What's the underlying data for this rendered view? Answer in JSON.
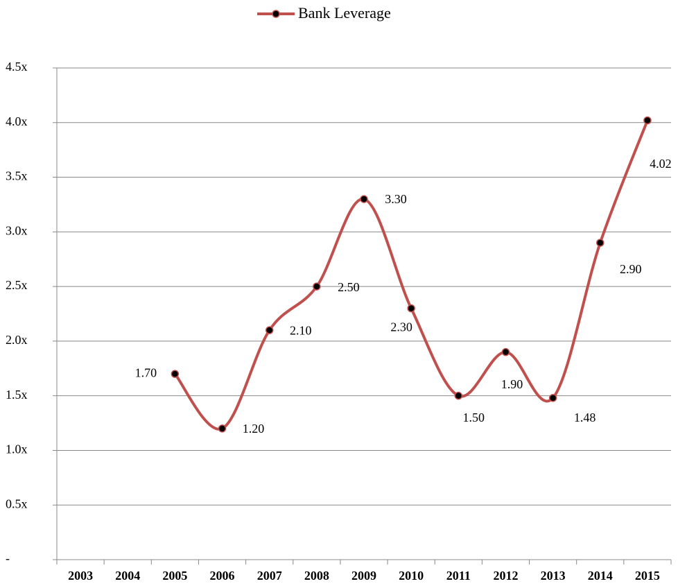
{
  "chart_data": {
    "type": "line",
    "categories": [
      "2003",
      "2004",
      "2005",
      "2006",
      "2007",
      "2008",
      "2009",
      "2010",
      "2011",
      "2012",
      "2013",
      "2014",
      "2015"
    ],
    "series": [
      {
        "name": "Bank Leverage",
        "color": "#c0504d",
        "values": [
          null,
          null,
          1.7,
          1.2,
          2.1,
          2.5,
          3.3,
          2.3,
          1.5,
          1.9,
          1.48,
          2.9,
          4.02
        ],
        "value_labels": [
          null,
          null,
          "1.70",
          "1.20",
          "2.10",
          "2.50",
          "3.30",
          "2.30",
          "1.50",
          "1.90",
          "1.48",
          "2.90",
          "4.02"
        ]
      }
    ],
    "ylim": [
      0,
      4.5
    ],
    "yticks": [
      {
        "value": 0,
        "label": "-"
      },
      {
        "value": 0.5,
        "label": "0.5x"
      },
      {
        "value": 1,
        "label": "1.0x"
      },
      {
        "value": 1.5,
        "label": "1.5x"
      },
      {
        "value": 2,
        "label": "2.0x"
      },
      {
        "value": 2.5,
        "label": "2.5x"
      },
      {
        "value": 3,
        "label": "3.0x"
      },
      {
        "value": 3.5,
        "label": "3.5x"
      },
      {
        "value": 4,
        "label": "4.0x"
      },
      {
        "value": 4.5,
        "label": "4.5x"
      }
    ],
    "grid": true,
    "legend": "top",
    "smooth": true
  }
}
